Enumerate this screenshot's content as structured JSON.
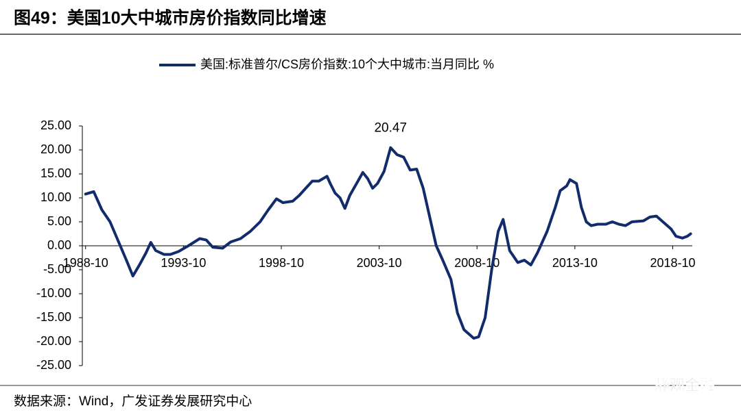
{
  "figure_title": "图49：美国10大中城市房价指数同比增速",
  "source": "数据来源：Wind，广发证券发展研究中心",
  "watermark": "静观金融",
  "chart_data": {
    "type": "line",
    "x": [
      "1988-10",
      "1989-03",
      "1989-08",
      "1990-01",
      "1990-06",
      "1990-11",
      "1991-03",
      "1991-07",
      "1991-11",
      "1992-02",
      "1992-05",
      "1992-10",
      "1993-02",
      "1993-07",
      "1994-01",
      "1994-08",
      "1994-12",
      "1995-04",
      "1995-10",
      "1996-03",
      "1996-09",
      "1997-03",
      "1997-09",
      "1998-02",
      "1998-07",
      "1998-11",
      "1999-05",
      "1999-09",
      "2000-01",
      "2000-05",
      "2000-09",
      "2001-02",
      "2001-04",
      "2001-07",
      "2001-10",
      "2002-01",
      "2002-04",
      "2002-09",
      "2002-12",
      "2003-03",
      "2003-06",
      "2003-09",
      "2004-01",
      "2004-05",
      "2004-09",
      "2005-01",
      "2005-05",
      "2005-09",
      "2006-01",
      "2006-05",
      "2006-09",
      "2007-01",
      "2007-06",
      "2007-10",
      "2008-02",
      "2008-08",
      "2008-11",
      "2009-03",
      "2009-07",
      "2009-11",
      "2010-02",
      "2010-06",
      "2010-11",
      "2011-03",
      "2011-07",
      "2011-11",
      "2012-05",
      "2012-10",
      "2013-01",
      "2013-05",
      "2013-07",
      "2013-11",
      "2014-02",
      "2014-05",
      "2014-08",
      "2014-12",
      "2015-05",
      "2015-09",
      "2016-01",
      "2016-05",
      "2016-09",
      "2017-04",
      "2017-08",
      "2017-12",
      "2018-04",
      "2018-09",
      "2018-12",
      "2019-04",
      "2019-07",
      "2019-09"
    ],
    "series": [
      {
        "name": "美国:标准普尔/CS房价指数:10个大中城市:当月同比 %",
        "color": "#122b6b",
        "values": [
          10.8,
          11.3,
          7.5,
          5,
          1,
          -3,
          -6.3,
          -4,
          -1.5,
          0.7,
          -1,
          -1.8,
          -1.8,
          -1.2,
          0,
          1.5,
          1.2,
          -0.3,
          -0.5,
          0.8,
          1.5,
          3,
          5,
          7.5,
          9.8,
          9,
          9.3,
          10.5,
          12,
          13.5,
          13.5,
          14.5,
          13,
          11,
          10,
          7.8,
          10.5,
          13.5,
          15.3,
          14,
          12,
          13,
          15.5,
          20.47,
          19,
          18.5,
          15.8,
          16,
          12,
          6,
          0,
          -3,
          -7,
          -14,
          -17.5,
          -19.3,
          -19,
          -15,
          -5,
          3,
          5.5,
          -1,
          -3.5,
          -3,
          -4,
          -1.5,
          3,
          8,
          11.5,
          12.5,
          13.8,
          13,
          8,
          5,
          4.2,
          4.5,
          4.5,
          5,
          4.5,
          4.2,
          5,
          5.2,
          6,
          6.2,
          5,
          3.5,
          2,
          1.6,
          2,
          2.5
        ]
      }
    ],
    "xlim": [
      "1988-08",
      "2019-10"
    ],
    "xticks": [
      "1988-10",
      "1993-10",
      "1998-10",
      "2003-10",
      "2008-10",
      "2013-10",
      "2018-10"
    ],
    "ylim": [
      -25,
      25
    ],
    "yticks": [
      {
        "value": 25,
        "label": "25.00"
      },
      {
        "value": 20,
        "label": "20.00"
      },
      {
        "value": 15,
        "label": "15.00"
      },
      {
        "value": 10,
        "label": "10.00"
      },
      {
        "value": 5,
        "label": "5.00"
      },
      {
        "value": 0,
        "label": "0.00"
      },
      {
        "value": -5,
        "label": "-5.00"
      },
      {
        "value": -10,
        "label": "-10.00"
      },
      {
        "value": -15,
        "label": "-15.00"
      },
      {
        "value": -20,
        "label": "-20.00"
      },
      {
        "value": -25,
        "label": "-25.00"
      }
    ],
    "annotations": [
      {
        "text": "20.47",
        "x": "2004-05",
        "y": 20.47
      }
    ],
    "legend": "top"
  }
}
